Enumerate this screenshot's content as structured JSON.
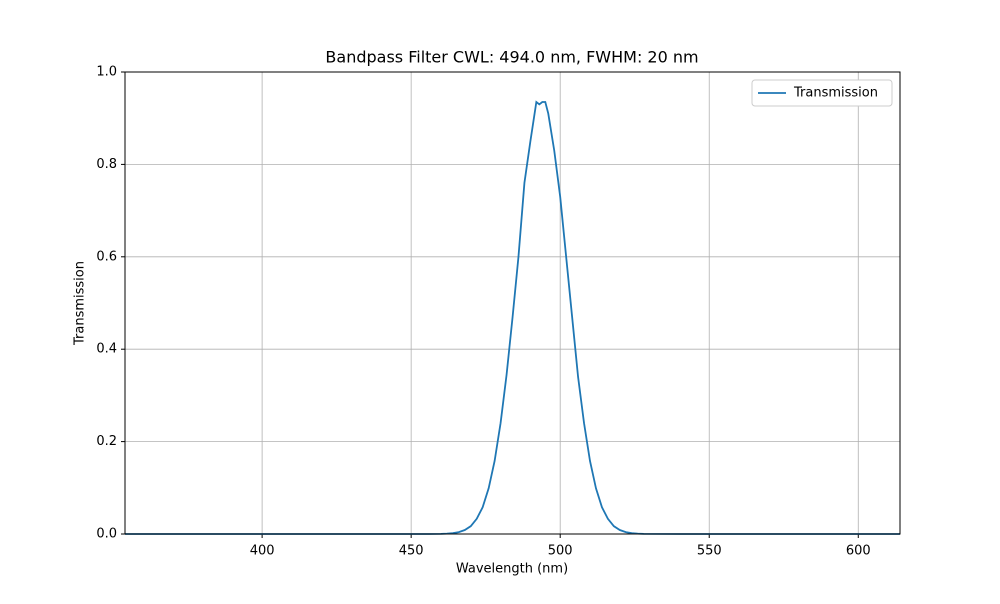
{
  "chart_data": {
    "type": "line",
    "title": "Bandpass Filter CWL: 494.0 nm, FWHM: 20 nm",
    "x_label": "Wavelength (nm)",
    "y_label": "Transmission",
    "x": [
      354,
      380,
      400,
      420,
      440,
      450,
      456,
      460,
      462,
      464,
      466,
      468,
      470,
      472,
      474,
      476,
      478,
      480,
      482,
      484,
      486,
      488,
      490,
      492,
      493,
      494,
      495,
      496,
      498,
      500,
      502,
      504,
      506,
      508,
      510,
      512,
      514,
      516,
      518,
      520,
      522,
      524,
      526,
      528,
      540,
      560,
      580,
      600,
      614
    ],
    "series": [
      {
        "name": "Transmission",
        "color": "#1f77b4",
        "values": [
          0,
          0,
          0,
          0,
          0,
          0,
          0,
          0.0003,
          0.0008,
          0.0018,
          0.004,
          0.0086,
          0.017,
          0.033,
          0.058,
          0.099,
          0.158,
          0.24,
          0.344,
          0.468,
          0.6,
          0.76,
          0.85,
          0.935,
          0.93,
          0.935,
          0.935,
          0.91,
          0.83,
          0.73,
          0.6,
          0.47,
          0.34,
          0.24,
          0.158,
          0.099,
          0.058,
          0.033,
          0.017,
          0.0086,
          0.004,
          0.0018,
          0.0008,
          0.0003,
          0,
          0,
          0,
          0,
          0
        ]
      }
    ],
    "xlim": [
      354,
      614
    ],
    "ylim": [
      0,
      1
    ],
    "xticks": [
      400,
      450,
      500,
      550,
      600
    ],
    "yticks": [
      {
        "value": 0,
        "label": "0.0"
      },
      0.2,
      0.4,
      0.6,
      0.8,
      {
        "value": 1,
        "label": "1.0"
      }
    ],
    "grid": true,
    "legend": "upper-right"
  }
}
